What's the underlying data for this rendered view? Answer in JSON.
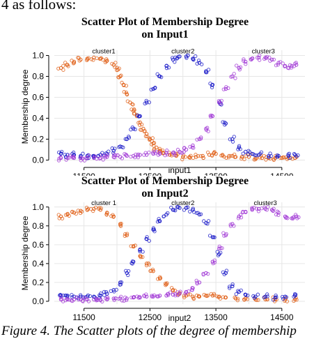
{
  "page": {
    "top_text": "4 as follows:",
    "caption": "Figure 4.  The Scatter plots of the degree of membership"
  },
  "colors": {
    "cluster1": "#e0611a",
    "cluster2": "#1a1ac8",
    "cluster3": "#a23bd6",
    "grid": "#e6e6e6"
  },
  "chart_data": [
    {
      "type": "scatter",
      "title": "Scatter Plot of Membership Degree",
      "subtitle": "on Input1",
      "xlabel": "input1",
      "ylabel": "Membership degree",
      "xticks": [
        11500,
        12500,
        13500,
        14500
      ],
      "xtick_labels": [
        "11500",
        "12500",
        "13500",
        "14500"
      ],
      "yticks": [
        0.0,
        0.2,
        0.4,
        0.6,
        0.8,
        1.0
      ],
      "ytick_labels": [
        "0.0",
        "0.2",
        "0.4",
        "0.6",
        "0.8",
        "1.0"
      ],
      "xlim": [
        11050,
        14850
      ],
      "ylim": [
        -0.03,
        1.05
      ],
      "grid": true,
      "annotations": [
        {
          "text": "cluster1",
          "x": 11800,
          "y": 1.02
        },
        {
          "text": "cluster2",
          "x": 13000,
          "y": 1.02
        },
        {
          "text": "cluster3",
          "x": 14220,
          "y": 1.02
        }
      ],
      "series": [
        {
          "name": "cluster1",
          "points": [
            [
              11150,
              0.88
            ],
            [
              11250,
              0.91
            ],
            [
              11350,
              0.94
            ],
            [
              11450,
              0.96
            ],
            [
              11550,
              0.97
            ],
            [
              11650,
              0.98
            ],
            [
              11750,
              0.97
            ],
            [
              11850,
              0.95
            ],
            [
              11950,
              0.91
            ],
            [
              12000,
              0.86
            ],
            [
              12050,
              0.8
            ],
            [
              12100,
              0.72
            ],
            [
              12150,
              0.63
            ],
            [
              12200,
              0.55
            ],
            [
              12250,
              0.47
            ],
            [
              12300,
              0.42
            ],
            [
              12350,
              0.36
            ],
            [
              12400,
              0.3
            ],
            [
              12450,
              0.25
            ],
            [
              12500,
              0.2
            ],
            [
              12550,
              0.16
            ],
            [
              12600,
              0.12
            ],
            [
              12650,
              0.09
            ],
            [
              12700,
              0.07
            ],
            [
              12800,
              0.05
            ],
            [
              12900,
              0.04
            ],
            [
              13000,
              0.03
            ],
            [
              13100,
              0.03
            ],
            [
              13200,
              0.03
            ],
            [
              13300,
              0.04
            ],
            [
              13400,
              0.05
            ],
            [
              13500,
              0.06
            ],
            [
              13600,
              0.05
            ],
            [
              13700,
              0.04
            ],
            [
              13800,
              0.03
            ],
            [
              13900,
              0.03
            ],
            [
              14000,
              0.03
            ],
            [
              14100,
              0.02
            ],
            [
              14200,
              0.02
            ],
            [
              14300,
              0.02
            ],
            [
              14400,
              0.02
            ],
            [
              14500,
              0.02
            ],
            [
              14600,
              0.02
            ],
            [
              14700,
              0.02
            ]
          ]
        },
        {
          "name": "cluster2",
          "points": [
            [
              11150,
              0.06
            ],
            [
              11250,
              0.05
            ],
            [
              11350,
              0.05
            ],
            [
              11450,
              0.04
            ],
            [
              11550,
              0.04
            ],
            [
              11650,
              0.04
            ],
            [
              11750,
              0.05
            ],
            [
              11850,
              0.06
            ],
            [
              11950,
              0.09
            ],
            [
              12050,
              0.13
            ],
            [
              12150,
              0.2
            ],
            [
              12250,
              0.3
            ],
            [
              12350,
              0.42
            ],
            [
              12450,
              0.55
            ],
            [
              12550,
              0.68
            ],
            [
              12650,
              0.8
            ],
            [
              12750,
              0.9
            ],
            [
              12850,
              0.96
            ],
            [
              12950,
              0.99
            ],
            [
              13050,
              0.99
            ],
            [
              13150,
              0.97
            ],
            [
              13250,
              0.93
            ],
            [
              13350,
              0.85
            ],
            [
              13450,
              0.72
            ],
            [
              13550,
              0.55
            ],
            [
              13650,
              0.35
            ],
            [
              13750,
              0.2
            ],
            [
              13850,
              0.12
            ],
            [
              13950,
              0.08
            ],
            [
              14050,
              0.06
            ],
            [
              14150,
              0.05
            ],
            [
              14300,
              0.04
            ],
            [
              14450,
              0.04
            ],
            [
              14600,
              0.04
            ],
            [
              14700,
              0.05
            ]
          ]
        },
        {
          "name": "cluster3",
          "points": [
            [
              11150,
              0.02
            ],
            [
              11250,
              0.02
            ],
            [
              11350,
              0.02
            ],
            [
              11450,
              0.02
            ],
            [
              11550,
              0.02
            ],
            [
              11650,
              0.02
            ],
            [
              11750,
              0.02
            ],
            [
              11850,
              0.03
            ],
            [
              11950,
              0.03
            ],
            [
              12050,
              0.03
            ],
            [
              12150,
              0.04
            ],
            [
              12250,
              0.04
            ],
            [
              12350,
              0.05
            ],
            [
              12450,
              0.05
            ],
            [
              12550,
              0.06
            ],
            [
              12650,
              0.06
            ],
            [
              12750,
              0.07
            ],
            [
              12850,
              0.07
            ],
            [
              12950,
              0.08
            ],
            [
              13050,
              0.1
            ],
            [
              13150,
              0.14
            ],
            [
              13250,
              0.2
            ],
            [
              13350,
              0.3
            ],
            [
              13450,
              0.42
            ],
            [
              13550,
              0.55
            ],
            [
              13650,
              0.68
            ],
            [
              13750,
              0.8
            ],
            [
              13850,
              0.88
            ],
            [
              13950,
              0.94
            ],
            [
              14050,
              0.97
            ],
            [
              14150,
              0.98
            ],
            [
              14250,
              0.98
            ],
            [
              14350,
              0.96
            ],
            [
              14450,
              0.93
            ],
            [
              14550,
              0.9
            ],
            [
              14650,
              0.9
            ],
            [
              14720,
              0.91
            ]
          ]
        }
      ]
    },
    {
      "type": "scatter",
      "title": "Scatter Plot of Membership Degree",
      "subtitle": "on Input2",
      "xlabel": "input2",
      "ylabel": "Membership degree",
      "xticks": [
        11500,
        12500,
        13500,
        14500
      ],
      "xtick_labels": [
        "11500",
        "12500",
        "13500",
        "14500"
      ],
      "yticks": [
        0.0,
        0.2,
        0.4,
        0.6,
        0.8,
        1.0
      ],
      "ytick_labels": [
        "0.0",
        "0.2",
        "0.4",
        "0.6",
        "0.8",
        "1.0"
      ],
      "xlim": [
        11050,
        14850
      ],
      "ylim": [
        -0.03,
        1.05
      ],
      "grid": true,
      "annotations": [
        {
          "text": "cluster 1",
          "x": 11800,
          "y": 1.02
        },
        {
          "text": "cluster2",
          "x": 13000,
          "y": 1.02
        },
        {
          "text": "cluster3",
          "x": 14250,
          "y": 1.02
        }
      ],
      "series": [
        {
          "name": "cluster 1",
          "points": [
            [
              11150,
              0.9
            ],
            [
              11250,
              0.92
            ],
            [
              11350,
              0.94
            ],
            [
              11450,
              0.96
            ],
            [
              11550,
              0.97
            ],
            [
              11650,
              0.98
            ],
            [
              11750,
              0.97
            ],
            [
              11850,
              0.94
            ],
            [
              11950,
              0.9
            ],
            [
              12050,
              0.82
            ],
            [
              12150,
              0.7
            ],
            [
              12250,
              0.58
            ],
            [
              12350,
              0.48
            ],
            [
              12450,
              0.4
            ],
            [
              12550,
              0.32
            ],
            [
              12650,
              0.24
            ],
            [
              12750,
              0.18
            ],
            [
              12850,
              0.12
            ],
            [
              12950,
              0.08
            ],
            [
              13050,
              0.06
            ],
            [
              13150,
              0.05
            ],
            [
              13250,
              0.05
            ],
            [
              13350,
              0.06
            ],
            [
              13450,
              0.06
            ],
            [
              13550,
              0.05
            ],
            [
              13650,
              0.04
            ],
            [
              13800,
              0.03
            ],
            [
              13950,
              0.03
            ],
            [
              14100,
              0.02
            ],
            [
              14250,
              0.02
            ],
            [
              14400,
              0.02
            ],
            [
              14550,
              0.02
            ],
            [
              14700,
              0.02
            ]
          ]
        },
        {
          "name": "cluster2",
          "points": [
            [
              11150,
              0.06
            ],
            [
              11250,
              0.06
            ],
            [
              11350,
              0.05
            ],
            [
              11450,
              0.05
            ],
            [
              11550,
              0.05
            ],
            [
              11650,
              0.05
            ],
            [
              11750,
              0.06
            ],
            [
              11850,
              0.08
            ],
            [
              11950,
              0.12
            ],
            [
              12050,
              0.2
            ],
            [
              12150,
              0.3
            ],
            [
              12250,
              0.42
            ],
            [
              12350,
              0.55
            ],
            [
              12450,
              0.66
            ],
            [
              12550,
              0.76
            ],
            [
              12650,
              0.85
            ],
            [
              12750,
              0.92
            ],
            [
              12850,
              0.97
            ],
            [
              12950,
              0.99
            ],
            [
              13050,
              0.99
            ],
            [
              13150,
              0.97
            ],
            [
              13250,
              0.92
            ],
            [
              13350,
              0.83
            ],
            [
              13450,
              0.68
            ],
            [
              13550,
              0.5
            ],
            [
              13650,
              0.3
            ],
            [
              13750,
              0.16
            ],
            [
              13850,
              0.1
            ],
            [
              13950,
              0.07
            ],
            [
              14100,
              0.05
            ],
            [
              14250,
              0.05
            ],
            [
              14400,
              0.04
            ],
            [
              14550,
              0.05
            ],
            [
              14700,
              0.06
            ]
          ]
        },
        {
          "name": "cluster3",
          "points": [
            [
              11150,
              0.02
            ],
            [
              11250,
              0.02
            ],
            [
              11350,
              0.02
            ],
            [
              11450,
              0.02
            ],
            [
              11550,
              0.02
            ],
            [
              11650,
              0.02
            ],
            [
              11750,
              0.02
            ],
            [
              11850,
              0.02
            ],
            [
              11950,
              0.03
            ],
            [
              12050,
              0.03
            ],
            [
              12150,
              0.03
            ],
            [
              12250,
              0.04
            ],
            [
              12350,
              0.04
            ],
            [
              12450,
              0.05
            ],
            [
              12550,
              0.05
            ],
            [
              12650,
              0.06
            ],
            [
              12750,
              0.06
            ],
            [
              12850,
              0.07
            ],
            [
              12950,
              0.08
            ],
            [
              13050,
              0.1
            ],
            [
              13150,
              0.14
            ],
            [
              13250,
              0.2
            ],
            [
              13350,
              0.3
            ],
            [
              13450,
              0.42
            ],
            [
              13550,
              0.56
            ],
            [
              13650,
              0.7
            ],
            [
              13750,
              0.82
            ],
            [
              13850,
              0.9
            ],
            [
              13950,
              0.95
            ],
            [
              14050,
              0.97
            ],
            [
              14150,
              0.98
            ],
            [
              14250,
              0.98
            ],
            [
              14350,
              0.97
            ],
            [
              14450,
              0.94
            ],
            [
              14550,
              0.9
            ],
            [
              14650,
              0.88
            ],
            [
              14720,
              0.9
            ]
          ]
        }
      ]
    }
  ]
}
